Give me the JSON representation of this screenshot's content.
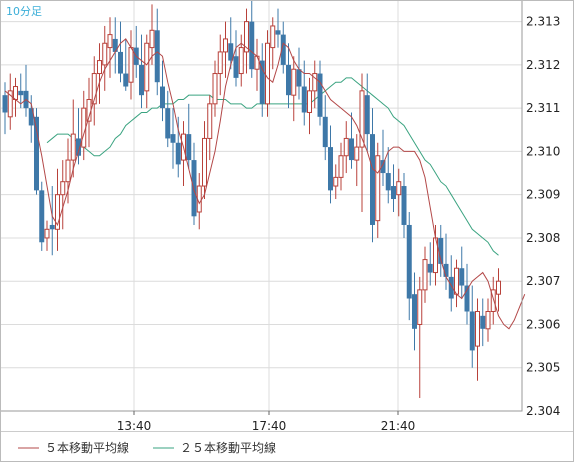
{
  "chart_data": {
    "type": "candlestick",
    "period_label": "10分足",
    "x_ticks": [
      "13:40",
      "17:40",
      "21:40"
    ],
    "ylim": [
      2.304,
      2.3135
    ],
    "y_ticks": [
      "2.313",
      "2.312",
      "2.311",
      "2.310",
      "2.309",
      "2.308",
      "2.307",
      "2.306",
      "2.305",
      "2.304"
    ],
    "grid": true,
    "legend_position": "bottom",
    "colors": {
      "bull": "#b8413a",
      "bear": "#3e78a8",
      "ma5": "#b34848",
      "ma25": "#3aa380",
      "period_label": "#3aaed8",
      "grid": "#dcdcdc"
    },
    "series": [
      {
        "name": "５本移動平均線",
        "values": [
          2.3114,
          2.3113,
          2.3112,
          2.3111,
          2.3112,
          2.3111,
          2.3105,
          2.3099,
          2.3092,
          2.3085,
          2.3083,
          2.3087,
          2.3091,
          2.3096,
          2.31,
          2.3104,
          2.3108,
          2.3112,
          2.3116,
          2.3119,
          2.3121,
          2.3123,
          2.3125,
          2.3126,
          2.3124,
          2.3122,
          2.3121,
          2.312,
          2.3122,
          2.3123,
          2.3122,
          2.3116,
          2.3111,
          2.3105,
          2.3101,
          2.3096,
          2.3091,
          2.3088,
          2.309,
          2.3095,
          2.31,
          2.3107,
          2.3115,
          2.312,
          2.3124,
          2.3125,
          2.3124,
          2.3123,
          2.3122,
          2.3119,
          2.3117,
          2.3116,
          2.312,
          2.3125,
          2.3124,
          2.3121,
          2.3119,
          2.3118,
          2.3118,
          2.3117,
          2.3116,
          2.3114,
          2.3112,
          2.3111,
          2.311,
          2.3109,
          2.3108,
          2.3106,
          2.3103,
          2.31,
          2.3096,
          2.3095,
          2.3097,
          2.31,
          2.3101,
          2.3101,
          2.31,
          2.31,
          2.31,
          2.3098,
          2.3094,
          2.3087,
          2.308,
          2.3075,
          2.3071,
          2.3069,
          2.3067,
          2.3066,
          2.3068,
          2.307,
          2.3071,
          2.3072,
          2.307,
          2.3066,
          2.3062,
          2.306,
          2.3059,
          2.3061,
          2.3064,
          2.3067
        ]
      },
      {
        "name": "２５本移動平均線",
        "values": [
          2.3102,
          2.3103,
          2.3104,
          2.3104,
          2.3104,
          2.3103,
          2.3102,
          2.3101,
          2.31,
          2.3099,
          2.3099,
          2.31,
          2.3101,
          2.3103,
          2.3104,
          2.3106,
          2.3107,
          2.3108,
          2.3109,
          2.3109,
          2.311,
          2.311,
          2.3111,
          2.3111,
          2.3111,
          2.3112,
          2.3112,
          2.3113,
          2.3113,
          2.3113,
          2.3113,
          2.3113,
          2.3112,
          2.3112,
          2.3112,
          2.3111,
          2.3111,
          2.3111,
          2.311,
          2.311,
          2.3111,
          2.3111,
          2.3111,
          2.3111,
          2.3111,
          2.3111,
          2.3111,
          2.3111,
          2.3111,
          2.3111,
          2.3111,
          2.3112,
          2.3113,
          2.3114,
          2.3115,
          2.3116,
          2.3116,
          2.3117,
          2.3117,
          2.3116,
          2.3115,
          2.3114,
          2.3113,
          2.3112,
          2.3111,
          2.311,
          2.3108,
          2.3107,
          2.3106,
          2.3104,
          2.3102,
          2.31,
          2.3098,
          2.3097,
          2.3095,
          2.3093,
          2.3092,
          2.309,
          2.3088,
          2.3086,
          2.3084,
          2.3082,
          2.3081,
          2.308,
          2.3079,
          2.3077,
          2.3076
        ]
      }
    ],
    "candles": [
      [
        2.3113,
        2.3116,
        2.3104,
        2.3109
      ],
      [
        2.3108,
        2.3118,
        2.3105,
        2.3114
      ],
      [
        2.3112,
        2.3117,
        2.3108,
        2.3115
      ],
      [
        2.3114,
        2.3118,
        2.311,
        2.3113
      ],
      [
        2.3114,
        2.312,
        2.3108,
        2.311
      ],
      [
        2.311,
        2.3113,
        2.3102,
        2.3106
      ],
      [
        2.3108,
        2.311,
        2.309,
        2.3091
      ],
      [
        2.3091,
        2.3093,
        2.3077,
        2.3079
      ],
      [
        2.308,
        2.3084,
        2.3077,
        2.3082
      ],
      [
        2.3083,
        2.3092,
        2.3076,
        2.3082
      ],
      [
        2.3082,
        2.3096,
        2.3077,
        2.309
      ],
      [
        2.309,
        2.3098,
        2.3082,
        2.3093
      ],
      [
        2.3093,
        2.3103,
        2.3088,
        2.3098
      ],
      [
        2.3098,
        2.3112,
        2.3094,
        2.3104
      ],
      [
        2.3103,
        2.311,
        2.3097,
        2.3099
      ],
      [
        2.3101,
        2.3114,
        2.3098,
        2.311
      ],
      [
        2.3107,
        2.3117,
        2.3101,
        2.3112
      ],
      [
        2.3111,
        2.3122,
        2.3106,
        2.3118
      ],
      [
        2.3118,
        2.3125,
        2.3111,
        2.3121
      ],
      [
        2.312,
        2.3129,
        2.3114,
        2.3125
      ],
      [
        2.3124,
        2.3131,
        2.3117,
        2.3127
      ],
      [
        2.3126,
        2.3131,
        2.3118,
        2.3123
      ],
      [
        2.3123,
        2.313,
        2.3116,
        2.3118
      ],
      [
        2.3118,
        2.3126,
        2.3114,
        2.3115
      ],
      [
        2.3116,
        2.3128,
        2.3112,
        2.3124
      ],
      [
        2.3124,
        2.3129,
        2.3117,
        2.312
      ],
      [
        2.312,
        2.3127,
        2.311,
        2.3113
      ],
      [
        2.3114,
        2.3127,
        2.311,
        2.3125
      ],
      [
        2.3124,
        2.3134,
        2.312,
        2.3128
      ],
      [
        2.3128,
        2.3133,
        2.3113,
        2.3116
      ],
      [
        2.3115,
        2.3121,
        2.3107,
        2.311
      ],
      [
        2.311,
        2.3114,
        2.3101,
        2.3103
      ],
      [
        2.3104,
        2.311,
        2.3096,
        2.3102
      ],
      [
        2.3102,
        2.3108,
        2.3094,
        2.3097
      ],
      [
        2.3098,
        2.3107,
        2.3092,
        2.3104
      ],
      [
        2.3104,
        2.3111,
        2.3096,
        2.3098
      ],
      [
        2.3098,
        2.3102,
        2.3083,
        2.3085
      ],
      [
        2.3086,
        2.3095,
        2.3082,
        2.3092
      ],
      [
        2.3092,
        2.3107,
        2.3089,
        2.3103
      ],
      [
        2.3103,
        2.3113,
        2.3098,
        2.3111
      ],
      [
        2.3111,
        2.3121,
        2.3108,
        2.3118
      ],
      [
        2.3118,
        2.3127,
        2.3113,
        2.3123
      ],
      [
        2.3123,
        2.313,
        2.3117,
        2.3126
      ],
      [
        2.3125,
        2.3131,
        2.3119,
        2.3121
      ],
      [
        2.3122,
        2.3128,
        2.3115,
        2.3117
      ],
      [
        2.3118,
        2.3127,
        2.3115,
        2.3124
      ],
      [
        2.3123,
        2.3133,
        2.3118,
        2.313
      ],
      [
        2.313,
        2.3135,
        2.3117,
        2.3119
      ],
      [
        2.3119,
        2.3126,
        2.3114,
        2.3122
      ],
      [
        2.3121,
        2.3125,
        2.3108,
        2.3111
      ],
      [
        2.3111,
        2.3128,
        2.3108,
        2.3125
      ],
      [
        2.3124,
        2.3131,
        2.3119,
        2.3129
      ],
      [
        2.3128,
        2.3133,
        2.3124,
        2.3127
      ],
      [
        2.3127,
        2.313,
        2.3118,
        2.312
      ],
      [
        2.312,
        2.3125,
        2.311,
        2.3113
      ],
      [
        2.3113,
        2.3122,
        2.3107,
        2.3119
      ],
      [
        2.3119,
        2.3124,
        2.3112,
        2.3115
      ],
      [
        2.3115,
        2.3121,
        2.3106,
        2.3109
      ],
      [
        2.3109,
        2.3117,
        2.3104,
        2.3114
      ],
      [
        2.3114,
        2.3121,
        2.311,
        2.3118
      ],
      [
        2.3118,
        2.3121,
        2.3106,
        2.3108
      ],
      [
        2.3108,
        2.3113,
        2.3098,
        2.3101
      ],
      [
        2.3101,
        2.3106,
        2.3088,
        2.3091
      ],
      [
        2.3092,
        2.3097,
        2.3089,
        2.3094
      ],
      [
        2.3094,
        2.3102,
        2.3091,
        2.3099
      ],
      [
        2.3099,
        2.3107,
        2.3095,
        2.3103
      ],
      [
        2.3103,
        2.3109,
        2.3096,
        2.3098
      ],
      [
        2.3098,
        2.3104,
        2.3092,
        2.3101
      ],
      [
        2.3101,
        2.3118,
        2.3086,
        2.3114
      ],
      [
        2.3113,
        2.3118,
        2.31,
        2.3104
      ],
      [
        2.3104,
        2.311,
        2.3079,
        2.3083
      ],
      [
        2.3084,
        2.3102,
        2.308,
        2.3099
      ],
      [
        2.3098,
        2.3105,
        2.3092,
        2.3095
      ],
      [
        2.3095,
        2.3101,
        2.3088,
        2.3091
      ],
      [
        2.3092,
        2.3097,
        2.3086,
        2.3089
      ],
      [
        2.309,
        2.3096,
        2.3085,
        2.3093
      ],
      [
        2.3092,
        2.3095,
        2.308,
        2.3083
      ],
      [
        2.3083,
        2.3086,
        2.3061,
        2.3066
      ],
      [
        2.3067,
        2.3072,
        2.3054,
        2.3059
      ],
      [
        2.306,
        2.3071,
        2.3043,
        2.3068
      ],
      [
        2.3068,
        2.3078,
        2.3065,
        2.3075
      ],
      [
        2.3074,
        2.3079,
        2.3069,
        2.3072
      ],
      [
        2.3072,
        2.3083,
        2.3069,
        2.308
      ],
      [
        2.308,
        2.3083,
        2.3071,
        2.3074
      ],
      [
        2.3074,
        2.3081,
        2.3068,
        2.3071
      ],
      [
        2.3071,
        2.3076,
        2.3063,
        2.3066
      ],
      [
        2.3067,
        2.3075,
        2.3064,
        2.3073
      ],
      [
        2.3073,
        2.3078,
        2.3066,
        2.3069
      ],
      [
        2.3069,
        2.3074,
        2.306,
        2.3063
      ],
      [
        2.3063,
        2.3069,
        2.305,
        2.3054
      ],
      [
        2.3055,
        2.3066,
        2.3047,
        2.3063
      ],
      [
        2.3062,
        2.3066,
        2.3055,
        2.3059
      ],
      [
        2.3059,
        2.3066,
        2.3056,
        2.3063
      ],
      [
        2.3063,
        2.3071,
        2.306,
        2.3068
      ],
      [
        2.3067,
        2.3073,
        2.3063,
        2.307
      ]
    ]
  }
}
